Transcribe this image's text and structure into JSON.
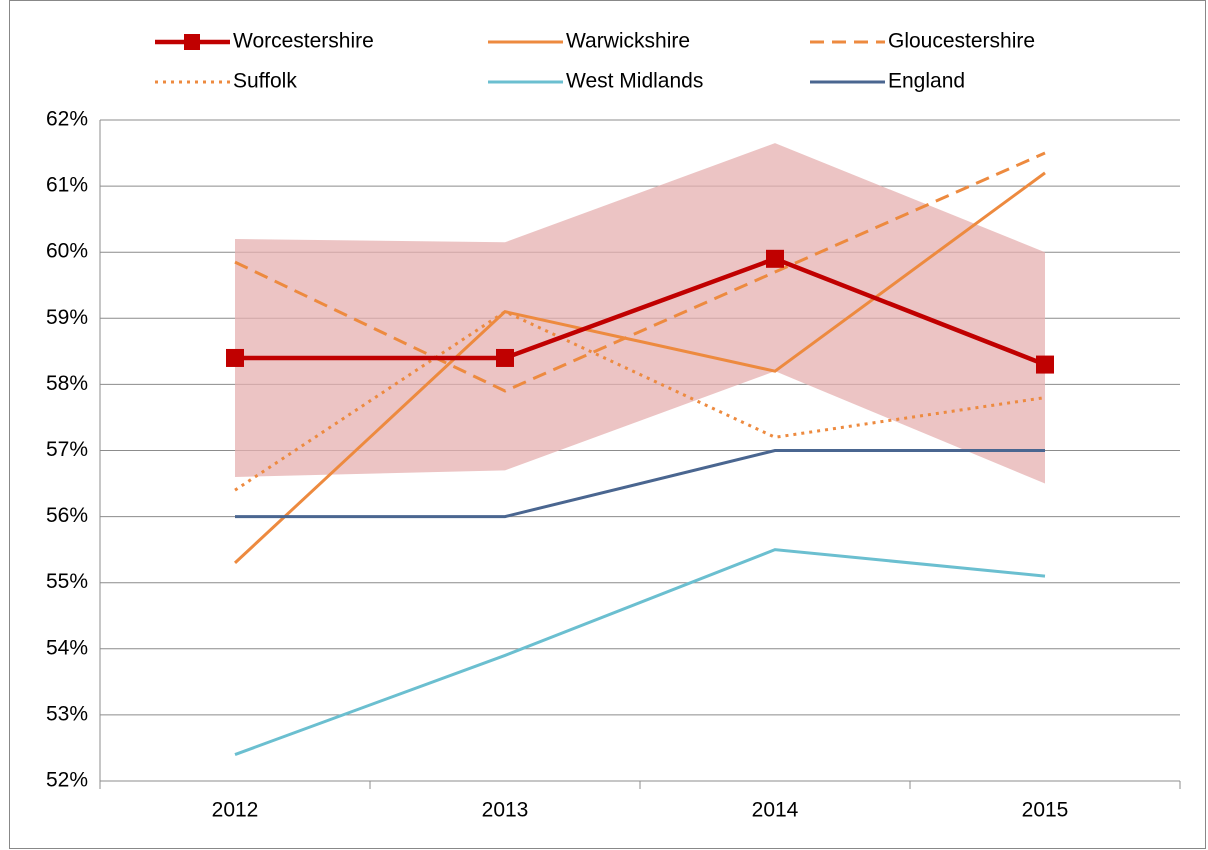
{
  "chart_data": {
    "type": "line",
    "categories": [
      "2012",
      "2013",
      "2014",
      "2015"
    ],
    "series": [
      {
        "name": "Worcestershire",
        "color": "#c00000",
        "dash": "solid",
        "marker": "square",
        "values": [
          58.4,
          58.4,
          59.9,
          58.3
        ]
      },
      {
        "name": "Warwickshire",
        "color": "#ed8a3f",
        "dash": "solid",
        "values": [
          55.3,
          59.1,
          58.2,
          61.2
        ]
      },
      {
        "name": "Gloucestershire",
        "color": "#ed8a3f",
        "dash": "dashed",
        "values": [
          59.85,
          57.9,
          59.7,
          61.5
        ]
      },
      {
        "name": "Suffolk",
        "color": "#ed8a3f",
        "dash": "dotted",
        "values": [
          56.4,
          59.1,
          57.2,
          57.8
        ]
      },
      {
        "name": "West Midlands",
        "color": "#6bbfd0",
        "dash": "solid",
        "values": [
          52.4,
          53.9,
          55.5,
          55.1
        ]
      },
      {
        "name": "England",
        "color": "#4a6690",
        "dash": "solid",
        "values": [
          56.0,
          56.0,
          57.0,
          57.0
        ]
      }
    ],
    "interval": {
      "color": "#e6b0b0",
      "upper": [
        60.2,
        60.15,
        61.65,
        60.0
      ],
      "lower": [
        56.6,
        56.7,
        58.2,
        56.5
      ]
    },
    "ylim": [
      52,
      62
    ],
    "yticks": [
      {
        "value": 52,
        "label": "52%"
      },
      {
        "value": 53,
        "label": "53%"
      },
      {
        "value": 54,
        "label": "54%"
      },
      {
        "value": 55,
        "label": "55%"
      },
      {
        "value": 56,
        "label": "56%"
      },
      {
        "value": 57,
        "label": "57%"
      },
      {
        "value": 58,
        "label": "58%"
      },
      {
        "value": 59,
        "label": "59%"
      },
      {
        "value": 60,
        "label": "60%"
      },
      {
        "value": 61,
        "label": "61%"
      },
      {
        "value": 62,
        "label": "62%"
      }
    ],
    "grid": true,
    "legend": "top"
  }
}
